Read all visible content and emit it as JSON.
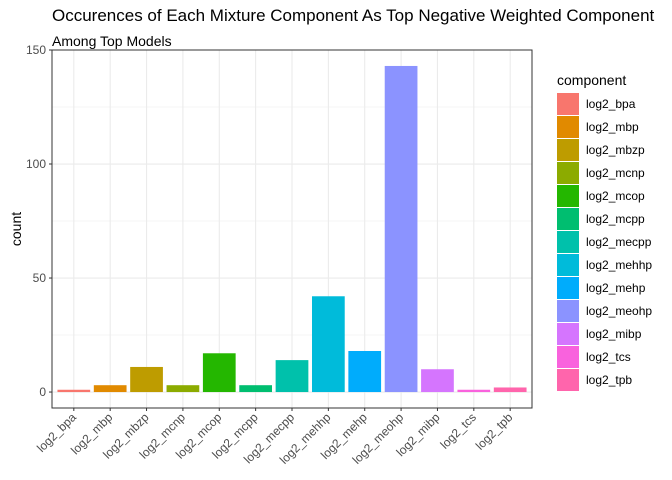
{
  "chart_data": {
    "type": "bar",
    "title": "Occurences of Each Mixture Component As Top Negative Weighted Component",
    "subtitle": "Among Top Models",
    "xlabel": "",
    "ylabel": "count",
    "ylim": [
      -7,
      150
    ],
    "yticks": [
      0,
      50,
      100,
      150
    ],
    "grid": true,
    "legend_title": "component",
    "legend_position": "right",
    "categories": [
      "log2_bpa",
      "log2_mbp",
      "log2_mbzp",
      "log2_mcnp",
      "log2_mcop",
      "log2_mcpp",
      "log2_mecpp",
      "log2_mehhp",
      "log2_mehp",
      "log2_meohp",
      "log2_mibp",
      "log2_tcs",
      "log2_tpb"
    ],
    "values": [
      1,
      3,
      11,
      3,
      17,
      3,
      14,
      42,
      18,
      143,
      10,
      1,
      2
    ],
    "colors": [
      "#F8766D",
      "#E18A00",
      "#BE9C00",
      "#8CAB00",
      "#24B700",
      "#00BE70",
      "#00C1AB",
      "#00BBDA",
      "#00ACFC",
      "#8B93FF",
      "#D575FE",
      "#F962DD",
      "#FF65AC"
    ]
  }
}
